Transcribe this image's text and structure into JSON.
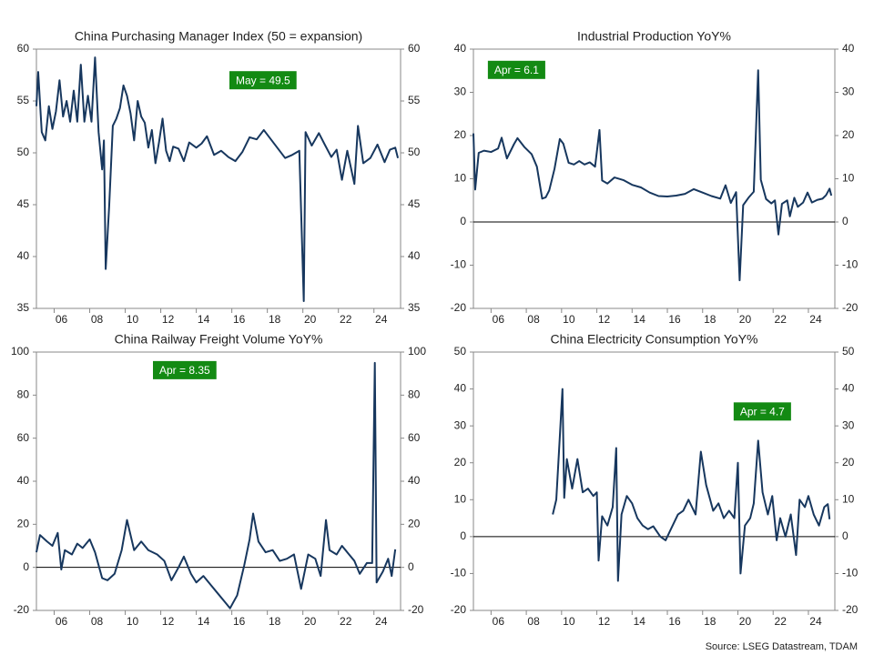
{
  "chart_data": [
    {
      "type": "line",
      "title": "China Purchasing Manager Index (50 = expansion)",
      "annotation": "May  = 49.5",
      "color": "#17375e",
      "twin_axis": true,
      "zero_line": false,
      "x": [
        2005.0,
        2005.1,
        2005.3,
        2005.5,
        2005.7,
        2005.9,
        2006.1,
        2006.3,
        2006.5,
        2006.7,
        2006.9,
        2007.1,
        2007.3,
        2007.5,
        2007.7,
        2007.9,
        2008.1,
        2008.3,
        2008.5,
        2008.7,
        2008.8,
        2008.9,
        2009.1,
        2009.3,
        2009.5,
        2009.7,
        2009.9,
        2010.1,
        2010.3,
        2010.5,
        2010.7,
        2010.9,
        2011.1,
        2011.3,
        2011.5,
        2011.7,
        2011.9,
        2012.1,
        2012.3,
        2012.5,
        2012.7,
        2013.0,
        2013.3,
        2013.6,
        2014.0,
        2014.3,
        2014.6,
        2015.0,
        2015.4,
        2015.8,
        2016.2,
        2016.6,
        2017.0,
        2017.4,
        2017.8,
        2018.2,
        2018.6,
        2019.0,
        2019.4,
        2019.8,
        2020.05,
        2020.15,
        2020.5,
        2020.9,
        2021.2,
        2021.6,
        2021.9,
        2022.2,
        2022.5,
        2022.9,
        2023.1,
        2023.4,
        2023.8,
        2024.2,
        2024.6,
        2024.9,
        2025.2,
        2025.35
      ],
      "values": [
        54.5,
        57.8,
        52,
        51.2,
        54.5,
        52.3,
        54,
        57,
        53.5,
        55,
        53,
        56,
        53,
        58.5,
        53,
        55.5,
        53,
        59.2,
        52,
        48.4,
        51.2,
        38.8,
        45,
        52.6,
        53.3,
        54.3,
        56.5,
        55.5,
        53.8,
        51.2,
        55,
        53.5,
        52.9,
        50.5,
        52.2,
        49,
        51,
        53.3,
        50.2,
        49.2,
        50.6,
        50.4,
        49.2,
        51,
        50.5,
        50.9,
        51.6,
        49.8,
        50.2,
        49.6,
        49.2,
        50.1,
        51.5,
        51.3,
        52.2,
        51.3,
        50.4,
        49.5,
        49.8,
        50.2,
        35.7,
        52,
        50.7,
        51.9,
        50.9,
        49.6,
        50.3,
        47.4,
        50.2,
        47,
        52.6,
        49,
        49.5,
        50.8,
        49.1,
        50.3,
        50.5,
        49.5
      ],
      "xlim": [
        2005,
        2025.5
      ],
      "xticks": [
        {
          "value": 2006,
          "label": "06"
        },
        {
          "value": 2008,
          "label": "08"
        },
        {
          "value": 2010,
          "label": "10"
        },
        {
          "value": 2012,
          "label": "12"
        },
        {
          "value": 2014,
          "label": "14"
        },
        {
          "value": 2016,
          "label": "16"
        },
        {
          "value": 2018,
          "label": "18"
        },
        {
          "value": 2020,
          "label": "20"
        },
        {
          "value": 2022,
          "label": "22"
        },
        {
          "value": 2024,
          "label": "24"
        }
      ],
      "ylim": [
        35,
        60
      ],
      "yticks": [
        35,
        40,
        45,
        50,
        55,
        60
      ]
    },
    {
      "type": "line",
      "title": "Industrial Production YoY%",
      "annotation": "Apr  = 6.1",
      "color": "#17375e",
      "twin_axis": true,
      "zero_line": true,
      "x": [
        2005.0,
        2005.1,
        2005.3,
        2005.6,
        2006.0,
        2006.4,
        2006.6,
        2006.9,
        2007.3,
        2007.5,
        2007.9,
        2008.3,
        2008.6,
        2008.9,
        2009.1,
        2009.3,
        2009.6,
        2009.9,
        2010.1,
        2010.4,
        2010.7,
        2011.0,
        2011.3,
        2011.6,
        2011.9,
        2012.15,
        2012.3,
        2012.6,
        2013.0,
        2013.5,
        2014.0,
        2014.5,
        2015.0,
        2015.5,
        2016.0,
        2016.5,
        2017.0,
        2017.5,
        2018.0,
        2018.5,
        2019.0,
        2019.3,
        2019.6,
        2019.9,
        2020.1,
        2020.3,
        2020.6,
        2020.9,
        2021.15,
        2021.3,
        2021.6,
        2021.9,
        2022.1,
        2022.3,
        2022.5,
        2022.8,
        2022.95,
        2023.2,
        2023.4,
        2023.7,
        2023.95,
        2024.2,
        2024.5,
        2024.8,
        2025.0,
        2025.2,
        2025.3
      ],
      "values": [
        20.5,
        7.5,
        16,
        16.5,
        16.2,
        17,
        19.5,
        14.7,
        18,
        19.4,
        17.3,
        15.7,
        12.8,
        5.4,
        5.7,
        7.3,
        12.3,
        19.2,
        18.1,
        13.7,
        13.3,
        14.1,
        13.3,
        13.8,
        12.8,
        21.3,
        9.6,
        8.9,
        10.3,
        9.7,
        8.6,
        8,
        6.8,
        6,
        5.9,
        6.1,
        6.5,
        7.6,
        6.8,
        6,
        5.4,
        8.5,
        4.4,
        6.9,
        -13.5,
        3.9,
        5.6,
        7,
        35.1,
        9.8,
        5.3,
        4.3,
        5,
        -2.9,
        4.2,
        5,
        1.3,
        5.6,
        3.5,
        4.5,
        6.8,
        4.5,
        5.1,
        5.4,
        6.2,
        7.7,
        6.1
      ],
      "xlim": [
        2005,
        2025.5
      ],
      "xticks": [
        {
          "value": 2006,
          "label": "06"
        },
        {
          "value": 2008,
          "label": "08"
        },
        {
          "value": 2010,
          "label": "10"
        },
        {
          "value": 2012,
          "label": "12"
        },
        {
          "value": 2014,
          "label": "14"
        },
        {
          "value": 2016,
          "label": "16"
        },
        {
          "value": 2018,
          "label": "18"
        },
        {
          "value": 2020,
          "label": "20"
        },
        {
          "value": 2022,
          "label": "22"
        },
        {
          "value": 2024,
          "label": "24"
        }
      ],
      "ylim": [
        -20,
        40
      ],
      "yticks": [
        -20,
        -10,
        0,
        10,
        20,
        30,
        40
      ]
    },
    {
      "type": "line",
      "title": "China Railway Freight Volume YoY%",
      "annotation": "Apr  = 8.35",
      "color": "#17375e",
      "twin_axis": true,
      "zero_line": true,
      "x": [
        2005.0,
        2005.2,
        2005.6,
        2005.9,
        2006.2,
        2006.4,
        2006.6,
        2007.0,
        2007.3,
        2007.6,
        2008.0,
        2008.3,
        2008.7,
        2009.0,
        2009.4,
        2009.8,
        2010.1,
        2010.5,
        2010.9,
        2011.3,
        2011.8,
        2012.2,
        2012.6,
        2013.0,
        2013.3,
        2013.7,
        2014.0,
        2014.4,
        2014.8,
        2015.2,
        2015.6,
        2015.9,
        2016.3,
        2016.7,
        2017.0,
        2017.2,
        2017.5,
        2017.9,
        2018.3,
        2018.7,
        2019.1,
        2019.5,
        2019.9,
        2020.3,
        2020.7,
        2021.0,
        2021.3,
        2021.5,
        2021.9,
        2022.2,
        2022.6,
        2022.9,
        2023.2,
        2023.6,
        2023.9,
        2024.05,
        2024.15,
        2024.5,
        2024.8,
        2025.0,
        2025.2
      ],
      "values": [
        7,
        15,
        12,
        10,
        16,
        -1,
        8,
        6,
        11,
        9,
        13,
        7,
        -5,
        -6,
        -3,
        8,
        22,
        8,
        12,
        8,
        6,
        3,
        -6,
        0,
        5,
        -3,
        -7,
        -4,
        -8,
        -12,
        -16,
        -19,
        -13,
        1,
        13,
        25,
        12,
        7,
        8,
        3,
        4,
        6,
        -10,
        6,
        4,
        -4,
        22,
        8,
        6,
        10,
        6,
        3,
        -3,
        2,
        2,
        95,
        -7,
        -2,
        4,
        -4,
        8.35
      ],
      "xlim": [
        2005,
        2025.5
      ],
      "xticks": [
        {
          "value": 2006,
          "label": "06"
        },
        {
          "value": 2008,
          "label": "08"
        },
        {
          "value": 2010,
          "label": "10"
        },
        {
          "value": 2012,
          "label": "12"
        },
        {
          "value": 2014,
          "label": "14"
        },
        {
          "value": 2016,
          "label": "16"
        },
        {
          "value": 2018,
          "label": "18"
        },
        {
          "value": 2020,
          "label": "20"
        },
        {
          "value": 2022,
          "label": "22"
        },
        {
          "value": 2024,
          "label": "24"
        }
      ],
      "ylim": [
        -20,
        100
      ],
      "yticks": [
        -20,
        0,
        20,
        40,
        60,
        80,
        100
      ]
    },
    {
      "type": "line",
      "title": "China Electricity Consumption YoY%",
      "annotation": "Apr  = 4.7",
      "color": "#17375e",
      "twin_axis": true,
      "zero_line": true,
      "x": [
        2009.5,
        2009.7,
        2009.9,
        2010.05,
        2010.15,
        2010.3,
        2010.6,
        2010.9,
        2011.2,
        2011.5,
        2011.8,
        2012.0,
        2012.1,
        2012.3,
        2012.6,
        2012.9,
        2013.1,
        2013.2,
        2013.4,
        2013.7,
        2014.0,
        2014.3,
        2014.6,
        2014.9,
        2015.2,
        2015.6,
        2015.9,
        2016.2,
        2016.6,
        2016.9,
        2017.2,
        2017.6,
        2017.9,
        2018.2,
        2018.6,
        2018.9,
        2019.2,
        2019.5,
        2019.8,
        2020.0,
        2020.15,
        2020.4,
        2020.7,
        2020.9,
        2021.15,
        2021.4,
        2021.7,
        2021.95,
        2022.2,
        2022.4,
        2022.7,
        2023.0,
        2023.3,
        2023.5,
        2023.8,
        2024.0,
        2024.3,
        2024.6,
        2024.9,
        2025.1,
        2025.2
      ],
      "values": [
        6,
        10,
        27,
        40,
        10.5,
        21,
        13,
        21,
        12,
        13,
        11,
        12,
        -6.5,
        5.5,
        3,
        8,
        24,
        -12,
        6,
        11,
        9,
        5,
        3,
        2,
        2.8,
        0,
        -1,
        2,
        6,
        7,
        10,
        6,
        23,
        14,
        7,
        9,
        5,
        7,
        5,
        20,
        -10,
        3,
        5,
        9,
        26,
        12,
        6,
        11,
        -1,
        5,
        0,
        6,
        -5,
        10,
        8,
        11,
        6,
        3,
        8,
        8.8,
        4.7
      ],
      "xlim": [
        2005,
        2025.5
      ],
      "xticks": [
        {
          "value": 2006,
          "label": "06"
        },
        {
          "value": 2008,
          "label": "08"
        },
        {
          "value": 2010,
          "label": "10"
        },
        {
          "value": 2012,
          "label": "12"
        },
        {
          "value": 2014,
          "label": "14"
        },
        {
          "value": 2016,
          "label": "16"
        },
        {
          "value": 2018,
          "label": "18"
        },
        {
          "value": 2020,
          "label": "20"
        },
        {
          "value": 2022,
          "label": "22"
        },
        {
          "value": 2024,
          "label": "24"
        }
      ],
      "ylim": [
        -20,
        50
      ],
      "yticks": [
        -20,
        -10,
        0,
        10,
        20,
        30,
        40,
        50
      ]
    }
  ],
  "source": "Source: LSEG Datastream, TDAM"
}
